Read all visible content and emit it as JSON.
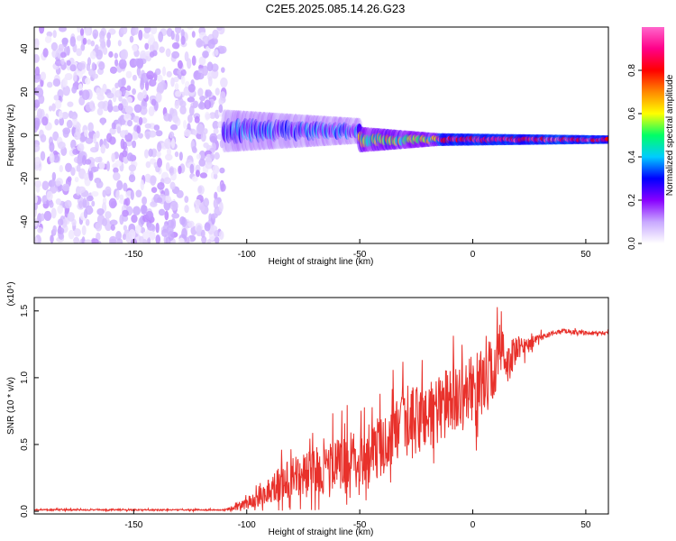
{
  "title": "C2E5.2025.085.14.26.G23",
  "chart_data": [
    {
      "type": "heatmap",
      "xlabel": "Height of straight line (km)",
      "ylabel": "Frequency (Hz)",
      "xlim": [
        -194,
        60
      ],
      "ylim": [
        -50,
        50
      ],
      "x_ticks": [
        -150,
        -100,
        -50,
        0,
        50
      ],
      "y_ticks": [
        -40,
        -20,
        0,
        20,
        40
      ],
      "colorbar": {
        "label": "Normalized spectral amplitude",
        "range": [
          0,
          1
        ],
        "ticks": [
          "0.0",
          "0.2",
          "0.4",
          "0.6",
          "0.8"
        ],
        "colors": [
          "#ffffff",
          "#c8a8ff",
          "#8800ff",
          "#0000ff",
          "#00ccff",
          "#00ff66",
          "#ffff00",
          "#ff8800",
          "#ff0000",
          "#ff0088",
          "#ff66cc"
        ]
      },
      "regions": [
        {
          "x_range": [
            -194,
            -110
          ],
          "freq_range": [
            -50,
            50
          ],
          "amplitude": [
            0.02,
            0.12
          ],
          "description": "broadband noise"
        },
        {
          "x_range": [
            -110,
            -50
          ],
          "freq_center": 2,
          "freq_halfwidth": [
            10,
            6
          ],
          "amplitude": [
            0.2,
            0.4
          ]
        },
        {
          "x_range": [
            -50,
            -15
          ],
          "freq_center": -2,
          "freq_halfwidth": [
            6,
            3
          ],
          "amplitude": [
            0.4,
            0.7
          ]
        },
        {
          "x_range": [
            -15,
            60
          ],
          "freq_center": -2,
          "freq_halfwidth": [
            3,
            2
          ],
          "amplitude": [
            0.8,
            1.0
          ]
        }
      ]
    },
    {
      "type": "line",
      "xlabel": "Height of straight line (km)",
      "ylabel": "SNR (10 * v/v)",
      "y_multiplier": "(x10⁴)",
      "xlim": [
        -194,
        60
      ],
      "ylim": [
        -0.02,
        1.6
      ],
      "x_ticks": [
        -150,
        -100,
        -50,
        0,
        50
      ],
      "y_ticks": [
        "0.0",
        "0.5",
        "1.0",
        "1.5"
      ],
      "series": [
        {
          "color": "#e8312b",
          "x": [
            -194,
            -170,
            -150,
            -130,
            -110,
            -105,
            -100,
            -95,
            -90,
            -85,
            -80,
            -75,
            -70,
            -65,
            -60,
            -55,
            -50,
            -45,
            -40,
            -35,
            -30,
            -25,
            -20,
            -15,
            -10,
            -5,
            0,
            5,
            10,
            12,
            15,
            20,
            25,
            30,
            35,
            40,
            45,
            50,
            55,
            60
          ],
          "base": [
            0.01,
            0.01,
            0.01,
            0.01,
            0.01,
            0.03,
            0.05,
            0.1,
            0.15,
            0.2,
            0.22,
            0.25,
            0.28,
            0.3,
            0.33,
            0.36,
            0.38,
            0.42,
            0.47,
            0.55,
            0.6,
            0.65,
            0.7,
            0.75,
            0.8,
            0.85,
            0.9,
            0.95,
            1.05,
            1.2,
            1.1,
            1.2,
            1.25,
            1.3,
            1.33,
            1.35,
            1.34,
            1.33,
            1.33,
            1.33
          ],
          "spread": [
            0.01,
            0.01,
            0.01,
            0.01,
            0.01,
            0.05,
            0.08,
            0.15,
            0.2,
            0.28,
            0.32,
            0.35,
            0.35,
            0.38,
            0.4,
            0.42,
            0.42,
            0.45,
            0.45,
            0.48,
            0.5,
            0.55,
            0.55,
            0.55,
            0.5,
            0.45,
            0.5,
            0.5,
            0.55,
            0.4,
            0.35,
            0.2,
            0.1,
            0.05,
            0.03,
            0.03,
            0.03,
            0.03,
            0.03,
            0.03
          ]
        }
      ]
    }
  ]
}
